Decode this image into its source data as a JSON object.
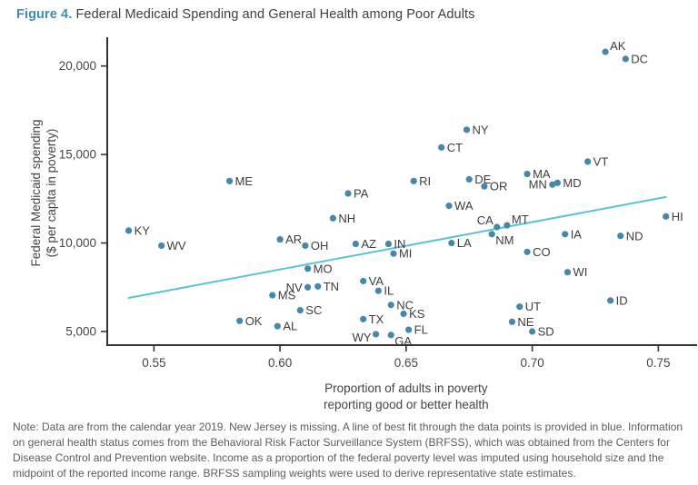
{
  "title": {
    "label": "Figure 4.",
    "text": " Federal Medicaid Spending and General Health among Poor Adults"
  },
  "note": "Note: Data are from the calendar year 2019. New Jersey is missing. A line of best fit through the data points is provided in blue. Information on general health status comes from the Behavioral Risk Factor Surveillance System (BRFSS), which was obtained from the Centers for Disease Control and Prevention website. Income as a proportion of the federal poverty level was imputed using household size and the midpoint of the reported income range. BRFSS sampling weights were used to derive representative state estimates.",
  "colors": {
    "accent": "#3a90ab",
    "dot": "#4589a8",
    "trend_line": "#5bc2d6",
    "axis": "#333333",
    "tick_text": "#454545",
    "point_label_text": "#3d3d3d",
    "note_text": "#5c5c5c"
  },
  "chart_data": {
    "type": "scatter",
    "title": "Figure 4. Federal Medicaid Spending and General Health among Poor Adults",
    "xlabel": "Proportion of adults in poverty\nreporting good or better health",
    "ylabel": "Federal Medicaid spending\n($ per capita in poverty)",
    "x_ticks": [
      0.55,
      0.6,
      0.65,
      0.7,
      0.75
    ],
    "y_ticks": [
      5000,
      10000,
      15000,
      20000
    ],
    "xlim": [
      0.5315,
      0.765
    ],
    "ylim": [
      4230,
      21420
    ],
    "grid": false,
    "legend": "none",
    "trend_line": {
      "x1": 0.54,
      "y1": 6900,
      "x2": 0.753,
      "y2": 12600,
      "note": "line of best fit"
    },
    "points": [
      {
        "state": "AK",
        "x": 0.729,
        "y": 20800,
        "label_pos": "above-right"
      },
      {
        "state": "DC",
        "x": 0.737,
        "y": 20400,
        "label_pos": "right"
      },
      {
        "state": "NY",
        "x": 0.674,
        "y": 16400,
        "label_pos": "right"
      },
      {
        "state": "CT",
        "x": 0.664,
        "y": 15400,
        "label_pos": "right"
      },
      {
        "state": "VT",
        "x": 0.722,
        "y": 14600,
        "label_pos": "right"
      },
      {
        "state": "MA",
        "x": 0.698,
        "y": 13900,
        "label_pos": "right"
      },
      {
        "state": "DE",
        "x": 0.675,
        "y": 13600,
        "label_pos": "right"
      },
      {
        "state": "ME",
        "x": 0.58,
        "y": 13500,
        "label_pos": "right"
      },
      {
        "state": "RI",
        "x": 0.653,
        "y": 13500,
        "label_pos": "right"
      },
      {
        "state": "MD",
        "x": 0.71,
        "y": 13400,
        "label_pos": "right"
      },
      {
        "state": "MN",
        "x": 0.708,
        "y": 13300,
        "label_pos": "left"
      },
      {
        "state": "OR",
        "x": 0.681,
        "y": 13200,
        "label_pos": "right"
      },
      {
        "state": "PA",
        "x": 0.627,
        "y": 12800,
        "label_pos": "right"
      },
      {
        "state": "WA",
        "x": 0.667,
        "y": 12100,
        "label_pos": "right"
      },
      {
        "state": "HI",
        "x": 0.753,
        "y": 11500,
        "label_pos": "right"
      },
      {
        "state": "NH",
        "x": 0.621,
        "y": 11400,
        "label_pos": "right"
      },
      {
        "state": "MT",
        "x": 0.69,
        "y": 11000,
        "label_pos": "above-right"
      },
      {
        "state": "CA",
        "x": 0.686,
        "y": 10900,
        "label_pos": "above-left"
      },
      {
        "state": "KY",
        "x": 0.54,
        "y": 10700,
        "label_pos": "right"
      },
      {
        "state": "NM",
        "x": 0.684,
        "y": 10500,
        "label_pos": "below-right"
      },
      {
        "state": "IA",
        "x": 0.713,
        "y": 10500,
        "label_pos": "right"
      },
      {
        "state": "ND",
        "x": 0.735,
        "y": 10400,
        "label_pos": "right"
      },
      {
        "state": "AR",
        "x": 0.6,
        "y": 10200,
        "label_pos": "right"
      },
      {
        "state": "LA",
        "x": 0.668,
        "y": 10000,
        "label_pos": "right"
      },
      {
        "state": "AZ",
        "x": 0.63,
        "y": 9950,
        "label_pos": "right"
      },
      {
        "state": "IN",
        "x": 0.643,
        "y": 9950,
        "label_pos": "right"
      },
      {
        "state": "WV",
        "x": 0.553,
        "y": 9850,
        "label_pos": "right"
      },
      {
        "state": "OH",
        "x": 0.61,
        "y": 9850,
        "label_pos": "right"
      },
      {
        "state": "CO",
        "x": 0.698,
        "y": 9500,
        "label_pos": "right"
      },
      {
        "state": "MI",
        "x": 0.645,
        "y": 9400,
        "label_pos": "right"
      },
      {
        "state": "MO",
        "x": 0.611,
        "y": 8550,
        "label_pos": "right"
      },
      {
        "state": "WI",
        "x": 0.714,
        "y": 8350,
        "label_pos": "right"
      },
      {
        "state": "VA",
        "x": 0.633,
        "y": 7850,
        "label_pos": "right"
      },
      {
        "state": "TN",
        "x": 0.615,
        "y": 7550,
        "label_pos": "right"
      },
      {
        "state": "NV",
        "x": 0.611,
        "y": 7500,
        "label_pos": "left"
      },
      {
        "state": "IL",
        "x": 0.639,
        "y": 7300,
        "label_pos": "right"
      },
      {
        "state": "MS",
        "x": 0.597,
        "y": 7050,
        "label_pos": "right"
      },
      {
        "state": "ID",
        "x": 0.731,
        "y": 6750,
        "label_pos": "right"
      },
      {
        "state": "NC",
        "x": 0.644,
        "y": 6500,
        "label_pos": "right"
      },
      {
        "state": "UT",
        "x": 0.695,
        "y": 6400,
        "label_pos": "right"
      },
      {
        "state": "SC",
        "x": 0.608,
        "y": 6200,
        "label_pos": "right"
      },
      {
        "state": "KS",
        "x": 0.649,
        "y": 6000,
        "label_pos": "right"
      },
      {
        "state": "TX",
        "x": 0.633,
        "y": 5700,
        "label_pos": "right"
      },
      {
        "state": "OK",
        "x": 0.584,
        "y": 5600,
        "label_pos": "right"
      },
      {
        "state": "NE",
        "x": 0.692,
        "y": 5550,
        "label_pos": "right"
      },
      {
        "state": "AL",
        "x": 0.599,
        "y": 5300,
        "label_pos": "right"
      },
      {
        "state": "FL",
        "x": 0.651,
        "y": 5100,
        "label_pos": "right"
      },
      {
        "state": "SD",
        "x": 0.7,
        "y": 5000,
        "label_pos": "right"
      },
      {
        "state": "WY",
        "x": 0.638,
        "y": 4850,
        "label_pos": "below-left"
      },
      {
        "state": "GA",
        "x": 0.644,
        "y": 4800,
        "label_pos": "below-right"
      }
    ]
  }
}
